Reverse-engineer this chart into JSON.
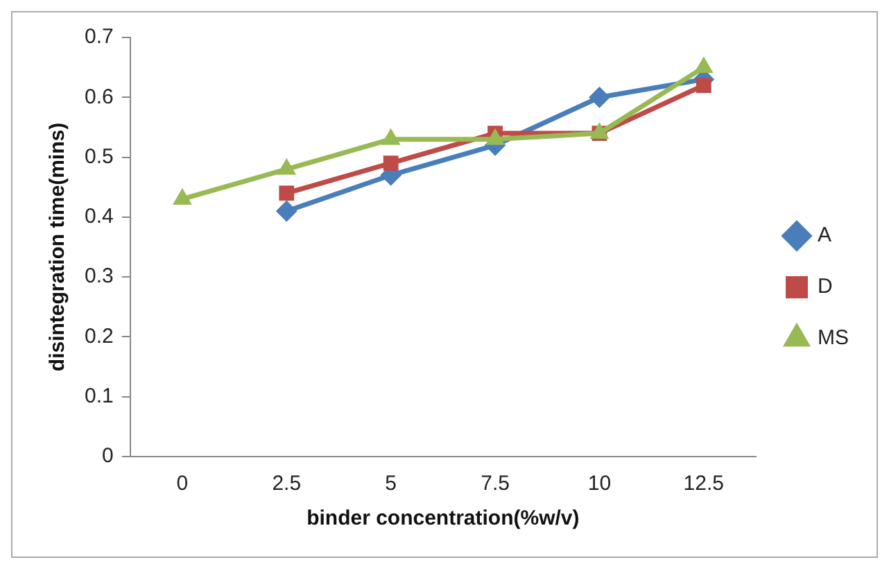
{
  "chart_data": {
    "type": "line",
    "xlabel": "binder concentration(%w/v)",
    "ylabel": "disintegration time(mins)",
    "categories": [
      "0",
      "2.5",
      "5",
      "7.5",
      "10",
      "12.5"
    ],
    "series": [
      {
        "name": "A",
        "color": "#4a7ebb",
        "marker": "diamond",
        "values": [
          null,
          0.41,
          0.47,
          0.52,
          0.6,
          0.63
        ]
      },
      {
        "name": "D",
        "color": "#be4b48",
        "marker": "square",
        "values": [
          null,
          0.44,
          0.49,
          0.54,
          0.54,
          0.62
        ]
      },
      {
        "name": "MS",
        "color": "#98b954",
        "marker": "triangle",
        "values": [
          0.43,
          0.48,
          0.53,
          0.53,
          0.54,
          0.65
        ]
      }
    ],
    "ylim": [
      0,
      0.7
    ],
    "yticks": [
      0,
      0.1,
      0.2,
      0.3,
      0.4,
      0.5,
      0.6,
      0.7
    ],
    "grid": false,
    "legend": "right"
  }
}
